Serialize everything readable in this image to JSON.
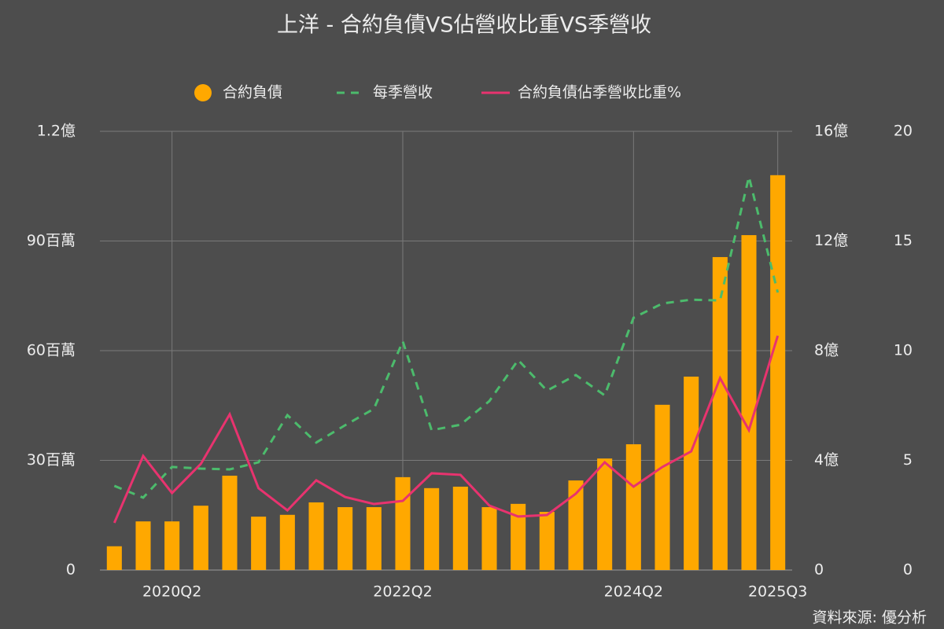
{
  "chart_data": {
    "type": "bar",
    "title": "上洋 - 合約負債VS佔營收比重VS季營收",
    "source": "資料來源: 優分析",
    "categories": [
      null,
      null,
      "2020Q2",
      null,
      null,
      null,
      null,
      null,
      null,
      null,
      "2022Q2",
      null,
      null,
      null,
      null,
      null,
      null,
      null,
      "2024Q2",
      null,
      null,
      null,
      null,
      "2025Q3"
    ],
    "ylim": [
      0,
      120000000
    ],
    "yticks": [
      0,
      {
        "value": 30000000,
        "label": "30百萬"
      },
      {
        "value": 60000000,
        "label": "60百萬"
      },
      {
        "value": 90000000,
        "label": "90百萬"
      },
      {
        "value": 120000000,
        "label": "1.2億"
      }
    ],
    "y2lim": [
      0,
      16
    ],
    "y2ticks": [
      0,
      {
        "value": 4,
        "label": "4億"
      },
      {
        "value": 8,
        "label": "8億"
      },
      {
        "value": 12,
        "label": "12億"
      },
      {
        "value": 16,
        "label": "16億"
      }
    ],
    "y3lim": [
      0,
      20
    ],
    "y3ticks": [
      0,
      5,
      10,
      15,
      20
    ],
    "grid": true,
    "series": [
      {
        "name": "合約負債",
        "type": "bar",
        "color": "#ffa800",
        "values": [
          6500000,
          13300000,
          13300000,
          17600000,
          25800000,
          14600000,
          15100000,
          18500000,
          17200000,
          17200000,
          25400000,
          22400000,
          22800000,
          17200000,
          18100000,
          15900000,
          24500000,
          30500000,
          34400000,
          45200000,
          52900000,
          85600000,
          91600000,
          108000000
        ]
      },
      {
        "name": "每季營收",
        "type": "line",
        "axis": "y2",
        "color": "#4cbb6c",
        "dashed": true,
        "values": [
          3.07,
          2.64,
          3.76,
          3.7,
          3.67,
          3.93,
          5.65,
          4.65,
          5.28,
          5.88,
          8.34,
          5.1,
          5.3,
          6.16,
          7.66,
          6.54,
          7.11,
          6.37,
          9.2,
          9.72,
          9.86,
          9.83,
          14.34,
          10.12
        ]
      },
      {
        "name": "合約負債佔季營收比重%",
        "type": "line",
        "axis": "y3",
        "color": "#e8336f",
        "values": [
          2.15,
          5.2,
          3.51,
          4.84,
          7.1,
          3.73,
          2.72,
          4.09,
          3.33,
          3.01,
          3.15,
          4.41,
          4.34,
          2.94,
          2.44,
          2.51,
          3.48,
          4.91,
          3.8,
          4.7,
          5.41,
          8.75,
          6.38,
          10.68
        ]
      }
    ]
  }
}
